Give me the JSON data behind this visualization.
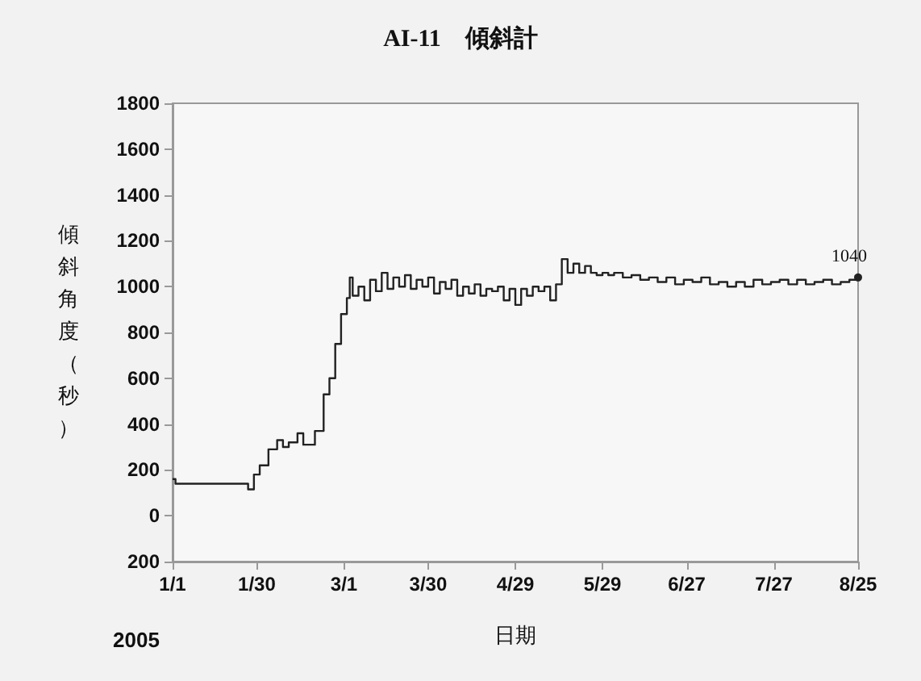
{
  "chart_data": {
    "type": "step",
    "title": "AI-11　傾斜計",
    "xlabel": "日期",
    "ylabel": "傾斜角度（秒）",
    "x": [
      "2005-01-01",
      "2005-01-02",
      "2005-01-26",
      "2005-01-27",
      "2005-01-29",
      "2005-01-31",
      "2005-02-03",
      "2005-02-06",
      "2005-02-08",
      "2005-02-10",
      "2005-02-13",
      "2005-02-15",
      "2005-02-19",
      "2005-02-22",
      "2005-02-24",
      "2005-02-26",
      "2005-02-28",
      "2005-03-02",
      "2005-03-03",
      "2005-03-04",
      "2005-03-06",
      "2005-03-08",
      "2005-03-10",
      "2005-03-12",
      "2005-03-14",
      "2005-03-16",
      "2005-03-18",
      "2005-03-20",
      "2005-03-22",
      "2005-03-24",
      "2005-03-26",
      "2005-03-28",
      "2005-03-30",
      "2005-04-01",
      "2005-04-03",
      "2005-04-05",
      "2005-04-07",
      "2005-04-09",
      "2005-04-11",
      "2005-04-13",
      "2005-04-15",
      "2005-04-17",
      "2005-04-19",
      "2005-04-21",
      "2005-04-23",
      "2005-04-25",
      "2005-04-27",
      "2005-04-29",
      "2005-05-01",
      "2005-05-03",
      "2005-05-05",
      "2005-05-07",
      "2005-05-09",
      "2005-05-11",
      "2005-05-13",
      "2005-05-15",
      "2005-05-17",
      "2005-05-19",
      "2005-05-21",
      "2005-05-23",
      "2005-05-25",
      "2005-05-27",
      "2005-05-29",
      "2005-05-31",
      "2005-06-02",
      "2005-06-05",
      "2005-06-08",
      "2005-06-11",
      "2005-06-14",
      "2005-06-17",
      "2005-06-20",
      "2005-06-23",
      "2005-06-26",
      "2005-06-29",
      "2005-07-02",
      "2005-07-05",
      "2005-07-08",
      "2005-07-11",
      "2005-07-14",
      "2005-07-17",
      "2005-07-20",
      "2005-07-23",
      "2005-07-26",
      "2005-07-29",
      "2005-08-01",
      "2005-08-04",
      "2005-08-07",
      "2005-08-10",
      "2005-08-13",
      "2005-08-16",
      "2005-08-19",
      "2005-08-22",
      "2005-08-25"
    ],
    "values": [
      160,
      140,
      140,
      115,
      180,
      220,
      290,
      330,
      300,
      320,
      360,
      310,
      370,
      530,
      600,
      750,
      880,
      950,
      1040,
      960,
      1000,
      940,
      1030,
      980,
      1060,
      990,
      1040,
      1000,
      1050,
      990,
      1030,
      1000,
      1040,
      970,
      1020,
      990,
      1030,
      960,
      1000,
      970,
      1010,
      960,
      990,
      980,
      1000,
      940,
      990,
      920,
      990,
      960,
      1000,
      980,
      1000,
      940,
      1010,
      1120,
      1060,
      1100,
      1060,
      1090,
      1060,
      1050,
      1060,
      1050,
      1060,
      1040,
      1050,
      1030,
      1040,
      1020,
      1040,
      1010,
      1030,
      1020,
      1040,
      1010,
      1020,
      1000,
      1020,
      1000,
      1030,
      1010,
      1020,
      1030,
      1010,
      1030,
      1010,
      1020,
      1030,
      1010,
      1020,
      1030,
      1040
    ],
    "color": "#222222",
    "marker": "none",
    "grid": false,
    "xlim": [
      "2005-01-01",
      "2005-08-25"
    ],
    "xticks": [
      {
        "value": "2005-01-01",
        "label": "1/1"
      },
      {
        "value": "2005-01-30",
        "label": "1/30"
      },
      {
        "value": "2005-03-01",
        "label": "3/1"
      },
      {
        "value": "2005-03-30",
        "label": "3/30"
      },
      {
        "value": "2005-04-29",
        "label": "4/29"
      },
      {
        "value": "2005-05-29",
        "label": "5/29"
      },
      {
        "value": "2005-06-27",
        "label": "6/27"
      },
      {
        "value": "2005-07-27",
        "label": "7/27"
      },
      {
        "value": "2005-08-25",
        "label": "8/25"
      }
    ],
    "ylim": [
      -200,
      1800
    ],
    "yticks": [
      {
        "value": -200,
        "label": "200"
      },
      0,
      200,
      400,
      600,
      800,
      1000,
      1200,
      1400,
      1600,
      1800
    ],
    "annotations": [
      {
        "text": "1040",
        "x": "2005-08-25",
        "y": 1040
      },
      "2005"
    ]
  }
}
